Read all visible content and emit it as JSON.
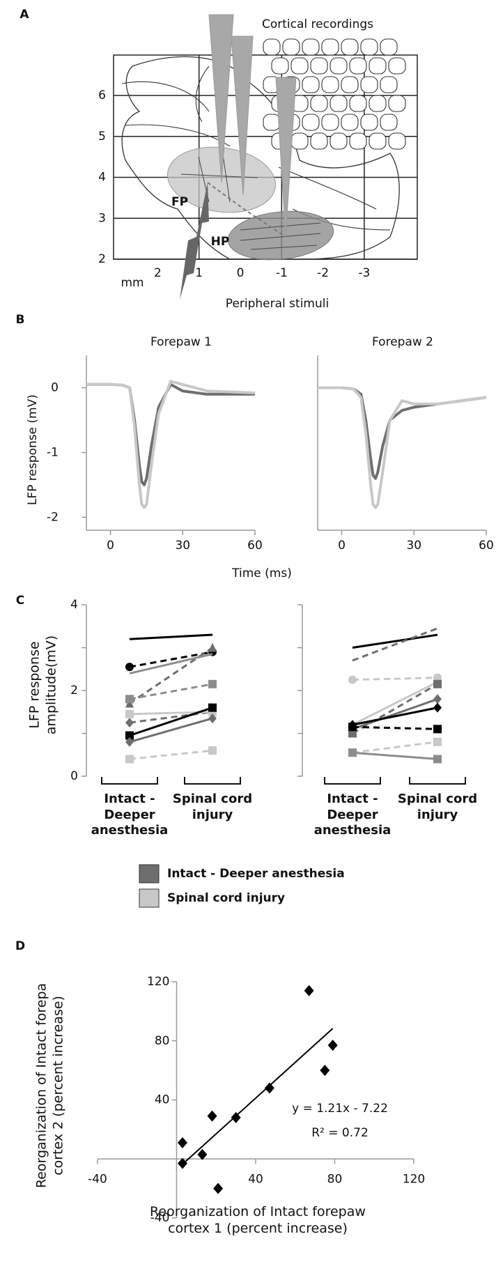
{
  "panel_labels": [
    "A",
    "B",
    "C",
    "D"
  ],
  "panel_a": {
    "title": "Cortical recordings",
    "stimulus": "Peripheral stimuli",
    "regions": [
      "FP",
      "HP"
    ],
    "unit": "mm",
    "xticks": [
      2,
      1,
      0,
      -1,
      -2,
      -3
    ],
    "yticks": [
      2,
      3,
      4,
      5,
      6
    ]
  },
  "chart_data": [
    {
      "type": "line",
      "title": "Forepaw 1",
      "ylabel": "LFP response (mV)",
      "xlabel": "Time (ms)",
      "xlim": [
        -10,
        60
      ],
      "ylim": [
        -2.2,
        0.5
      ],
      "xticks": [
        0,
        30,
        60
      ],
      "yticks": [
        0,
        -1,
        -2
      ],
      "x": [
        -10,
        0,
        5,
        8,
        10,
        12,
        13,
        14,
        15,
        17,
        20,
        25,
        30,
        40,
        60
      ],
      "series": [
        {
          "name": "Intact - Deeper anesthesia",
          "color": "#6e6e6e",
          "values": [
            0.05,
            0.05,
            0.04,
            0,
            -0.5,
            -1.2,
            -1.45,
            -1.5,
            -1.4,
            -0.9,
            -0.3,
            0.05,
            -0.05,
            -0.1,
            -0.1
          ]
        },
        {
          "name": "Spinal cord injury",
          "color": "#c8c8c8",
          "values": [
            0.05,
            0.05,
            0.04,
            0,
            -0.6,
            -1.5,
            -1.8,
            -1.85,
            -1.8,
            -1.2,
            -0.4,
            0.1,
            0.05,
            -0.05,
            -0.08
          ]
        }
      ]
    },
    {
      "type": "line",
      "title": "Forepaw 2",
      "xlim": [
        -10,
        60
      ],
      "ylim": [
        -2.2,
        0.5
      ],
      "xticks": [
        0,
        30,
        60
      ],
      "x": [
        -10,
        0,
        5,
        8,
        10,
        12,
        13,
        14,
        15,
        17,
        20,
        25,
        30,
        40,
        60
      ],
      "series": [
        {
          "color": "#6e6e6e",
          "values": [
            0,
            0,
            -0.02,
            -0.1,
            -0.5,
            -1.1,
            -1.35,
            -1.4,
            -1.3,
            -0.9,
            -0.5,
            -0.35,
            -0.3,
            -0.25,
            -0.15
          ]
        },
        {
          "color": "#c8c8c8",
          "values": [
            0,
            0,
            -0.02,
            -0.15,
            -0.7,
            -1.5,
            -1.8,
            -1.85,
            -1.8,
            -1.3,
            -0.5,
            -0.2,
            -0.25,
            -0.25,
            -0.15
          ]
        }
      ]
    },
    {
      "type": "paired",
      "ylabel": "LFP response amplitude(mV)",
      "categories": [
        "Intact - Deeper anesthesia",
        "Spinal cord injury"
      ],
      "ylim": [
        0,
        4
      ],
      "yticks": [
        0,
        2,
        4
      ],
      "yminorticks": [
        1,
        3
      ],
      "series": [
        {
          "color": "#000000",
          "dash": false,
          "marker": "none",
          "values": [
            3.2,
            3.3
          ]
        },
        {
          "color": "#000000",
          "dash": true,
          "marker": "circle",
          "values": [
            2.55,
            2.9
          ]
        },
        {
          "color": "#6e6e6e",
          "dash": true,
          "marker": "triangle",
          "values": [
            1.7,
            3.0
          ]
        },
        {
          "color": "#8c8c8c",
          "dash": false,
          "marker": "none",
          "values": [
            2.4,
            2.85
          ]
        },
        {
          "color": "#8c8c8c",
          "dash": true,
          "marker": "square",
          "values": [
            1.8,
            2.15
          ]
        },
        {
          "color": "#6e6e6e",
          "dash": true,
          "marker": "diamond",
          "values": [
            1.25,
            1.5
          ]
        },
        {
          "color": "#c8c8c8",
          "dash": false,
          "marker": "square",
          "values": [
            1.45,
            1.5
          ]
        },
        {
          "color": "#000000",
          "dash": false,
          "marker": "square",
          "values": [
            0.95,
            1.6
          ]
        },
        {
          "color": "#6e6e6e",
          "dash": false,
          "marker": "diamond",
          "values": [
            0.8,
            1.35
          ]
        },
        {
          "color": "#c8c8c8",
          "dash": true,
          "marker": "square",
          "values": [
            0.4,
            0.6
          ]
        }
      ]
    },
    {
      "type": "paired",
      "categories": [
        "Intact - Deeper anesthesia",
        "Spinal cord injury"
      ],
      "ylim": [
        0,
        4
      ],
      "yminorticks": [
        0,
        1,
        2,
        3,
        4
      ],
      "series": [
        {
          "color": "#000000",
          "dash": false,
          "marker": "none",
          "values": [
            3.0,
            3.3
          ]
        },
        {
          "color": "#6e6e6e",
          "dash": true,
          "marker": "none",
          "values": [
            2.7,
            3.45
          ]
        },
        {
          "color": "#c8c8c8",
          "dash": true,
          "marker": "circle",
          "values": [
            2.25,
            2.3
          ]
        },
        {
          "color": "#c8c8c8",
          "dash": false,
          "marker": "none",
          "values": [
            1.2,
            2.2
          ]
        },
        {
          "color": "#6e6e6e",
          "dash": true,
          "marker": "square",
          "values": [
            1.0,
            2.15
          ]
        },
        {
          "color": "#6e6e6e",
          "dash": false,
          "marker": "diamond",
          "values": [
            1.1,
            1.8
          ]
        },
        {
          "color": "#000000",
          "dash": false,
          "marker": "diamond",
          "values": [
            1.2,
            1.6
          ]
        },
        {
          "color": "#000000",
          "dash": true,
          "marker": "square",
          "values": [
            1.15,
            1.1
          ]
        },
        {
          "color": "#c8c8c8",
          "dash": true,
          "marker": "square",
          "values": [
            0.55,
            0.8
          ]
        },
        {
          "color": "#8c8c8c",
          "dash": false,
          "marker": "square",
          "values": [
            0.55,
            0.4
          ]
        }
      ]
    },
    {
      "type": "scatter",
      "xlabel": "Reorganization of Intact forepaw cortex 1 (percent increase)",
      "ylabel": "Reorganization of Intact forepa cortex 2 (percent increase)",
      "xlim": [
        -40,
        120
      ],
      "ylim": [
        -40,
        120
      ],
      "xticks": [
        -40,
        40,
        80,
        120
      ],
      "yticks": [
        -40,
        40,
        80,
        120
      ],
      "color": "#000000",
      "x": [
        3,
        3,
        13,
        18,
        21,
        30,
        47,
        67,
        75,
        79
      ],
      "values": [
        11,
        -3,
        3,
        29,
        -20,
        28,
        48,
        114,
        60,
        77
      ],
      "trendline": {
        "slope": 1.21,
        "intercept": -7.22,
        "x": [
          3,
          79
        ]
      },
      "equation": "y = 1.21x - 7.22",
      "r2_label": "R² = 0.72"
    }
  ]
}
